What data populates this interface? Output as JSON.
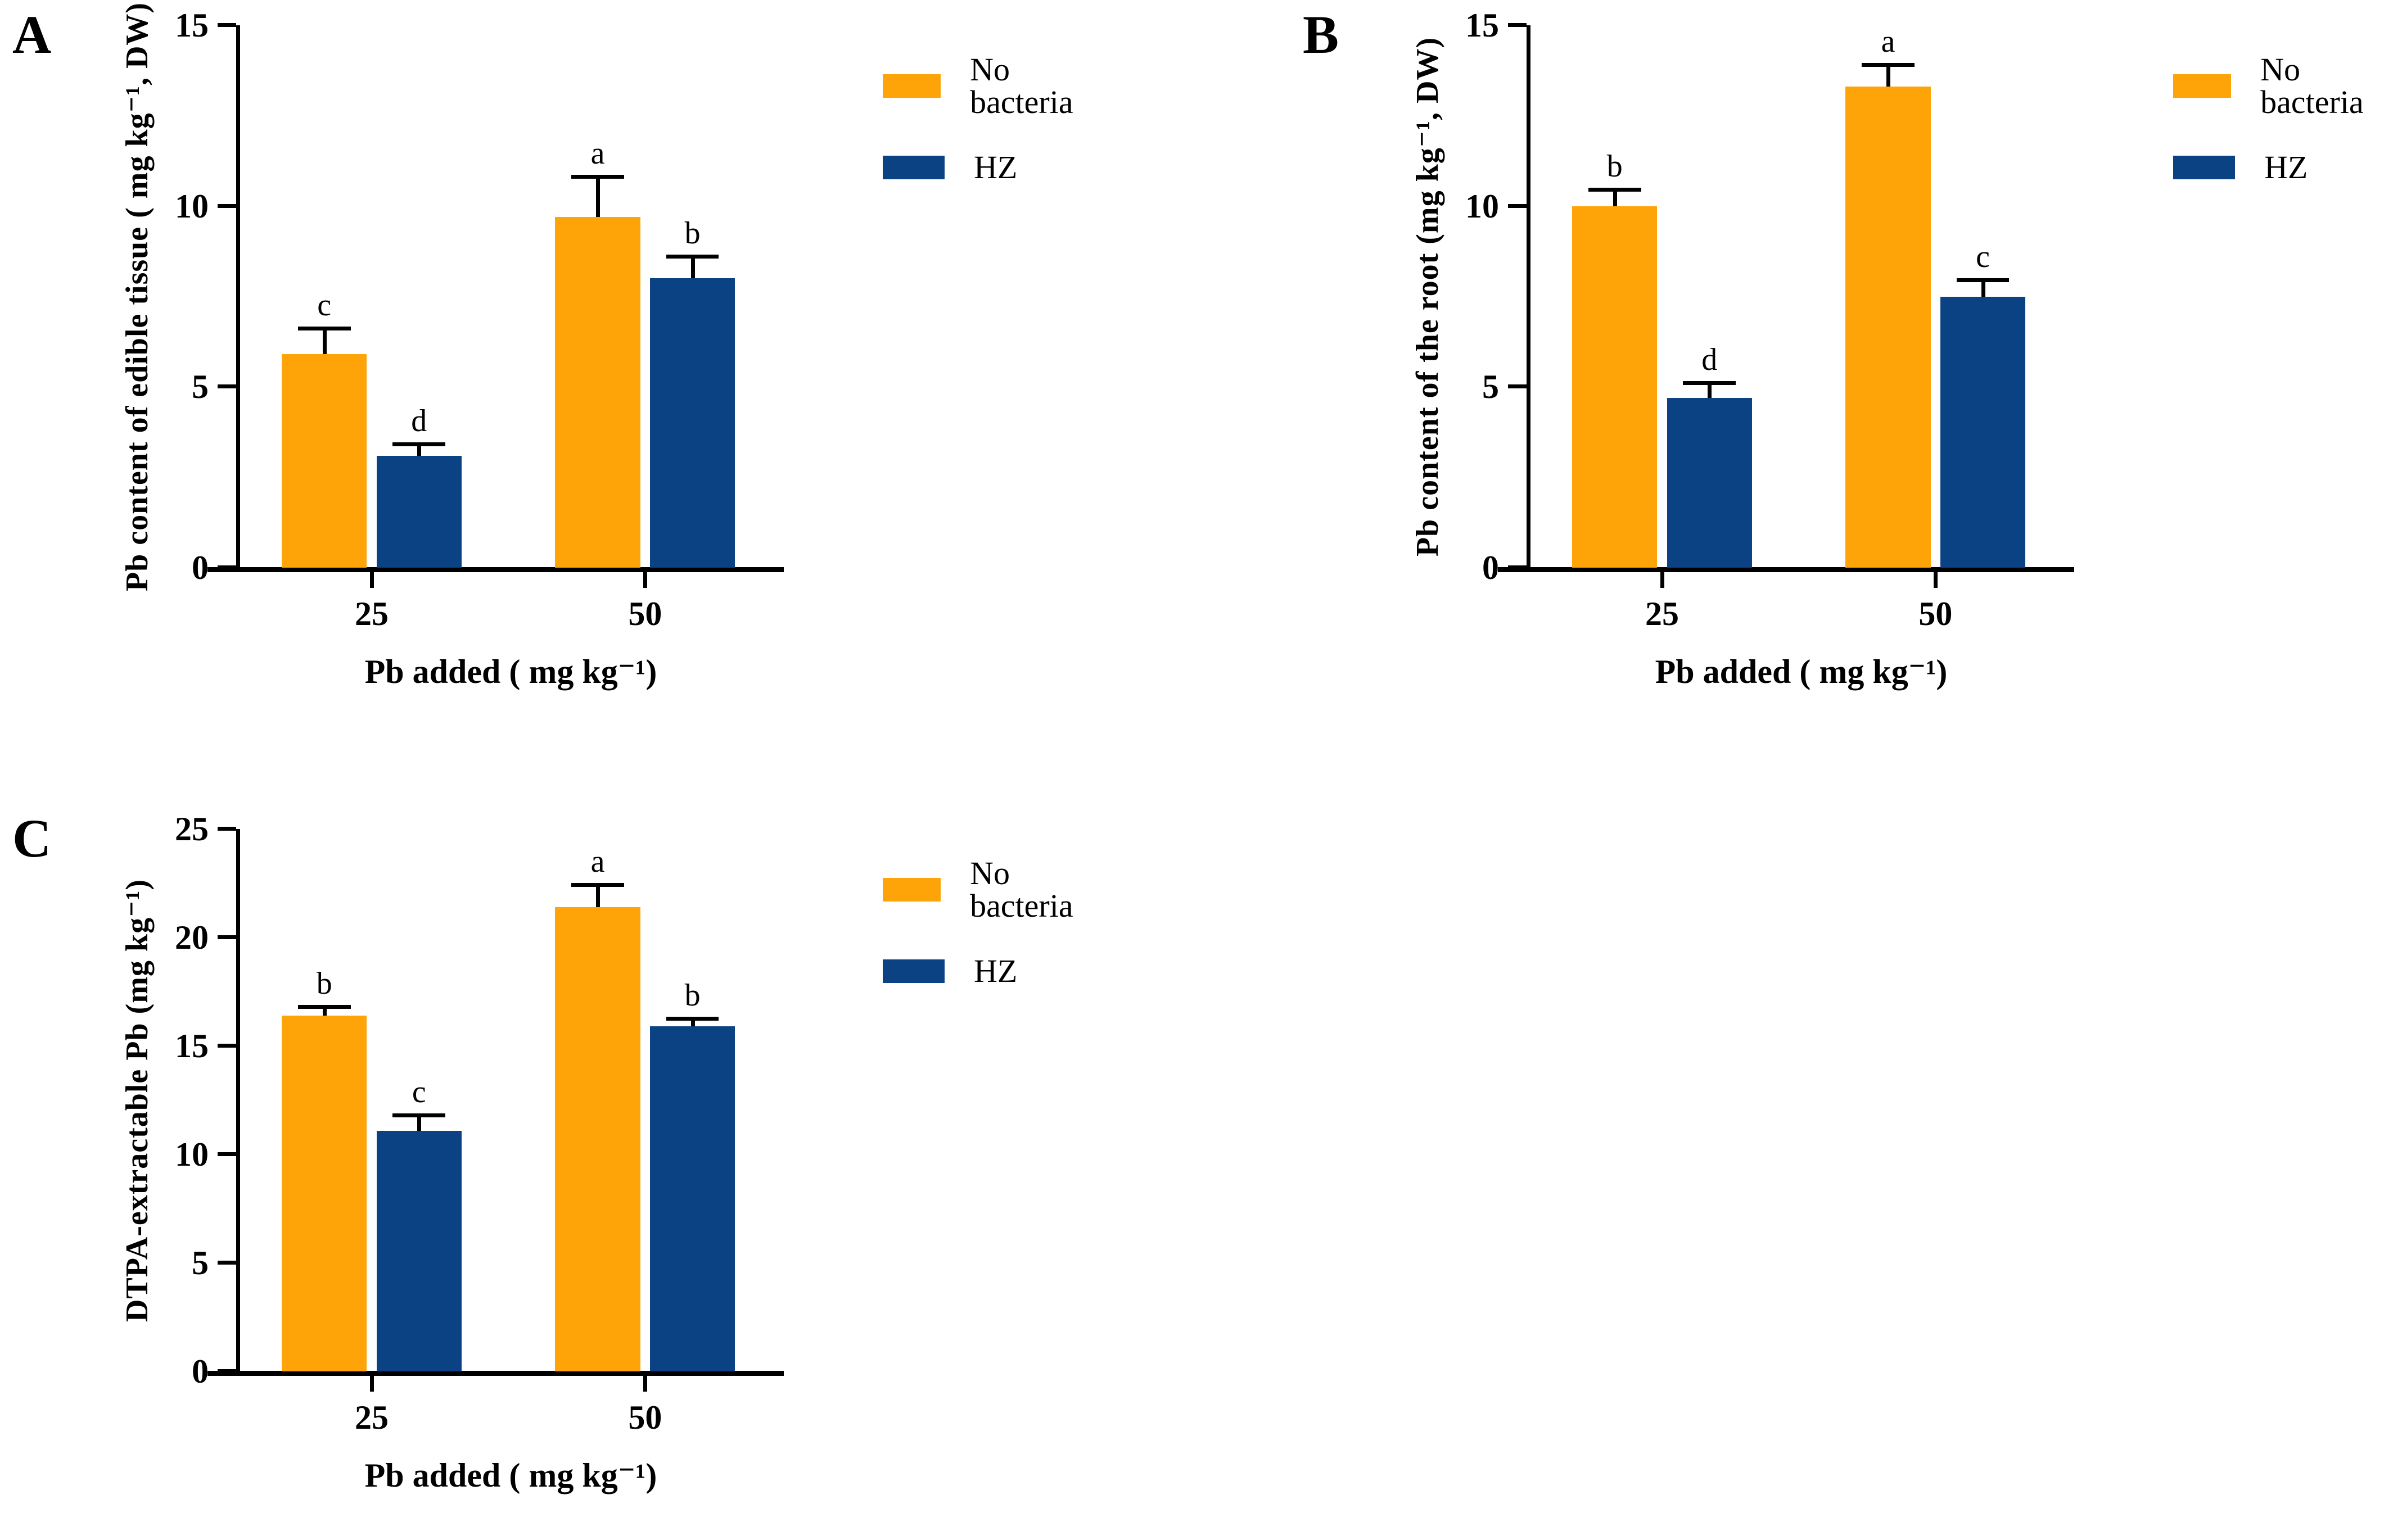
{
  "colors": {
    "no_bacteria": "#FFA408",
    "hz": "#0B4283",
    "axis": "#000000"
  },
  "legend": {
    "position": "right-of-plot",
    "items": [
      {
        "label": "No bacteria",
        "color_key": "no_bacteria"
      },
      {
        "label": "HZ",
        "color_key": "hz"
      }
    ]
  },
  "chart_data": [
    {
      "panel": "A",
      "type": "bar",
      "title": "",
      "ylabel": "Pb content of edible tissue ( mg kg⁻¹, DW)",
      "xlabel": "Pb added ( mg kg⁻¹)",
      "ylim": [
        0,
        15
      ],
      "yticks": [
        0,
        5,
        10,
        15
      ],
      "grid": false,
      "categories": [
        "25",
        "50"
      ],
      "series": [
        {
          "name": "No bacteria",
          "color_key": "no_bacteria",
          "values": [
            5.9,
            9.7
          ],
          "errors": [
            0.7,
            1.1
          ],
          "sig_letters": [
            "c",
            "a"
          ]
        },
        {
          "name": "HZ",
          "color_key": "hz",
          "values": [
            3.1,
            8.0
          ],
          "errors": [
            0.3,
            0.6
          ],
          "sig_letters": [
            "d",
            "b"
          ]
        }
      ]
    },
    {
      "panel": "B",
      "type": "bar",
      "title": "",
      "ylabel": "Pb content of the root (mg kg⁻¹, DW)",
      "xlabel": "Pb added ( mg kg⁻¹)",
      "ylim": [
        0,
        15
      ],
      "yticks": [
        0,
        5,
        10,
        15
      ],
      "grid": false,
      "categories": [
        "25",
        "50"
      ],
      "series": [
        {
          "name": "No bacteria",
          "color_key": "no_bacteria",
          "values": [
            10.0,
            13.3
          ],
          "errors": [
            0.45,
            0.6
          ],
          "sig_letters": [
            "b",
            "a"
          ]
        },
        {
          "name": "HZ",
          "color_key": "hz",
          "values": [
            4.7,
            7.5
          ],
          "errors": [
            0.4,
            0.45
          ],
          "sig_letters": [
            "d",
            "c"
          ]
        }
      ]
    },
    {
      "panel": "C",
      "type": "bar",
      "title": "",
      "ylabel": "DTPA-extractable Pb (mg kg⁻¹)",
      "xlabel": "Pb added ( mg kg⁻¹)",
      "ylim": [
        0,
        25
      ],
      "yticks": [
        0,
        5,
        10,
        15,
        20,
        25
      ],
      "grid": false,
      "categories": [
        "25",
        "50"
      ],
      "series": [
        {
          "name": "No bacteria",
          "color_key": "no_bacteria",
          "values": [
            16.4,
            21.4
          ],
          "errors": [
            0.4,
            1.0
          ],
          "sig_letters": [
            "b",
            "a"
          ]
        },
        {
          "name": "HZ",
          "color_key": "hz",
          "values": [
            11.1,
            15.9
          ],
          "errors": [
            0.7,
            0.35
          ],
          "sig_letters": [
            "c",
            "b"
          ]
        }
      ]
    }
  ]
}
